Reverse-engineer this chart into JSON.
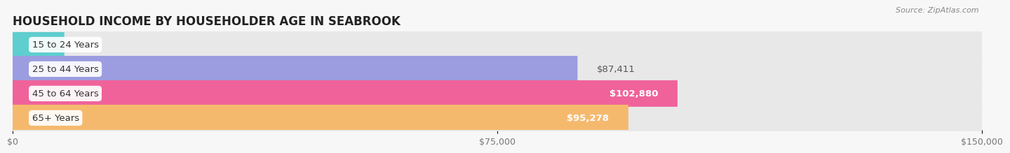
{
  "title": "HOUSEHOLD INCOME BY HOUSEHOLDER AGE IN SEABROOK",
  "source": "Source: ZipAtlas.com",
  "categories": [
    "15 to 24 Years",
    "25 to 44 Years",
    "45 to 64 Years",
    "65+ Years"
  ],
  "values": [
    0,
    87411,
    102880,
    95278
  ],
  "bar_colors": [
    "#5ecece",
    "#9b9de0",
    "#f0629a",
    "#f5b96e"
  ],
  "background_color": "#f7f7f7",
  "bar_bg_color": "#e8e8e8",
  "xlim": [
    0,
    150000
  ],
  "xticks": [
    0,
    75000,
    150000
  ],
  "xtick_labels": [
    "$0",
    "$75,000",
    "$150,000"
  ],
  "title_fontsize": 12,
  "label_fontsize": 9.5,
  "value_fontsize": 9,
  "bar_height": 0.62,
  "bar_gap": 0.38
}
